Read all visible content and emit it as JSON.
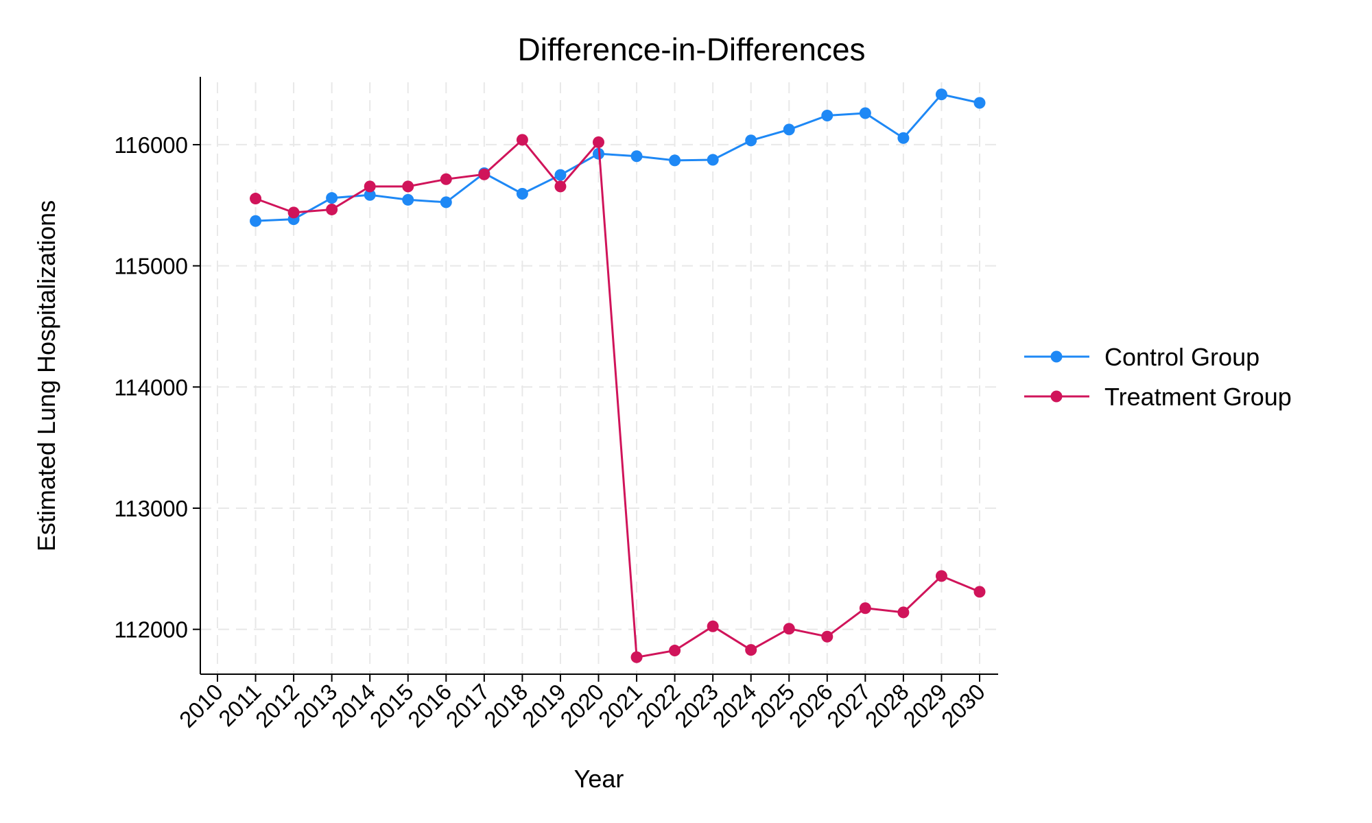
{
  "colors": {
    "control": "#1e88f5",
    "treatment": "#d0145a"
  },
  "chart_data": {
    "type": "line",
    "title": "Difference-in-Differences",
    "xlabel": "Year",
    "ylabel": "Estimated Lung Hospitalizations",
    "x_ticks": [
      2010,
      2011,
      2012,
      2013,
      2014,
      2015,
      2016,
      2017,
      2018,
      2019,
      2020,
      2021,
      2022,
      2023,
      2024,
      2025,
      2026,
      2027,
      2028,
      2029,
      2030
    ],
    "y_ticks": [
      112000,
      113000,
      114000,
      115000,
      116000
    ],
    "xlim": [
      2010,
      2030
    ],
    "ylim": [
      111630,
      116560
    ],
    "grid": true,
    "legend_position": "right",
    "series": [
      {
        "name": "Control Group",
        "color": "#1e88f5",
        "x": [
          2011,
          2012,
          2013,
          2014,
          2015,
          2016,
          2017,
          2018,
          2019,
          2020,
          2021,
          2022,
          2023,
          2024,
          2025,
          2026,
          2027,
          2028,
          2029,
          2030
        ],
        "y": [
          115370,
          115385,
          115560,
          115585,
          115545,
          115525,
          115765,
          115595,
          115750,
          115925,
          115905,
          115870,
          115875,
          116035,
          116125,
          116240,
          116260,
          116055,
          116415,
          116345
        ]
      },
      {
        "name": "Treatment Group",
        "color": "#d0145a",
        "x": [
          2011,
          2012,
          2013,
          2014,
          2015,
          2016,
          2017,
          2018,
          2019,
          2020,
          2021,
          2022,
          2023,
          2024,
          2025,
          2026,
          2027,
          2028,
          2029,
          2030
        ],
        "y": [
          115555,
          115440,
          115465,
          115655,
          115655,
          115715,
          115755,
          116040,
          115655,
          116020,
          111770,
          111825,
          112025,
          111830,
          112005,
          111940,
          112175,
          112140,
          112440,
          112310
        ]
      }
    ]
  }
}
